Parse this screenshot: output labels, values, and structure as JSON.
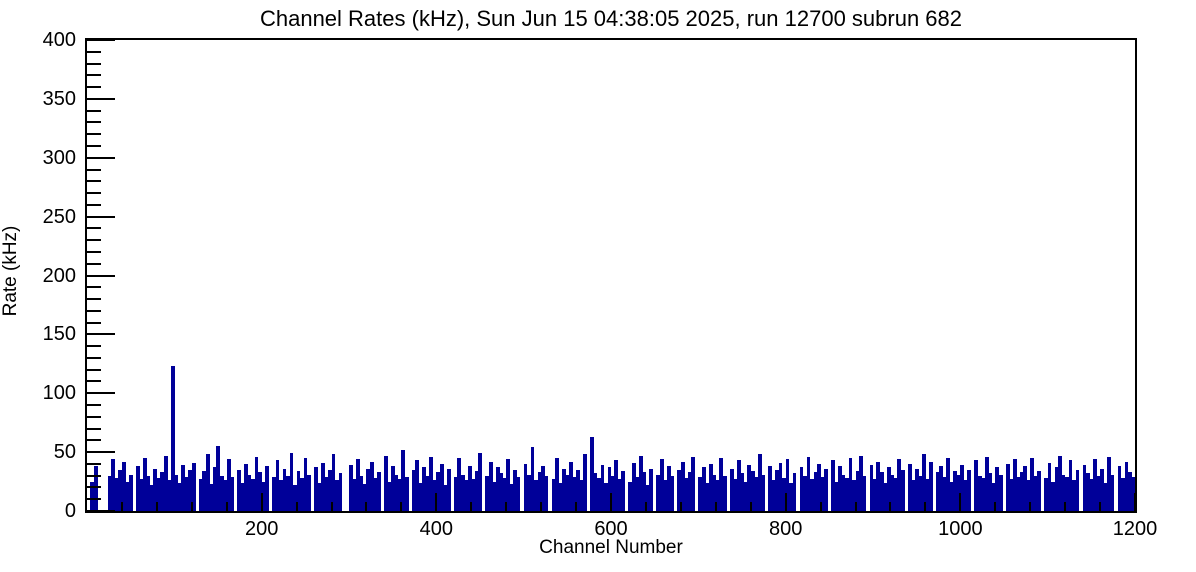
{
  "chart_data": {
    "type": "bar",
    "title": "Channel Rates (kHz), Sun Jun 15 04:38:05 2025, run 12700 subrun 682",
    "xlabel": "Channel Number",
    "ylabel": "Rate (kHz)",
    "xlim": [
      0,
      1200
    ],
    "ylim": [
      0,
      400
    ],
    "x_major_ticks": [
      200,
      400,
      600,
      800,
      1000,
      1200
    ],
    "x_minor_step": 40,
    "y_major_ticks": [
      0,
      50,
      100,
      150,
      200,
      250,
      300,
      350,
      400
    ],
    "y_minor_step": 10,
    "grid": false,
    "legend": false,
    "bar_color": "#000099",
    "bin_width_channels": 4,
    "notable_peaks": [
      {
        "channel": 98,
        "rate": 123
      },
      {
        "channel": 578,
        "rate": 63
      }
    ],
    "values": [
      0,
      25,
      38,
      0,
      0,
      0,
      30,
      44,
      28,
      35,
      42,
      25,
      31,
      0,
      38,
      27,
      45,
      30,
      22,
      36,
      28,
      33,
      47,
      26,
      123,
      31,
      24,
      39,
      29,
      35,
      41,
      0,
      27,
      34,
      48,
      23,
      37,
      55,
      30,
      26,
      44,
      29,
      0,
      35,
      24,
      40,
      31,
      27,
      46,
      33,
      25,
      38,
      0,
      29,
      43,
      26,
      36,
      30,
      49,
      22,
      34,
      28,
      45,
      31,
      0,
      37,
      24,
      41,
      29,
      35,
      48,
      26,
      32,
      0,
      0,
      39,
      27,
      44,
      30,
      23,
      36,
      42,
      28,
      33,
      0,
      47,
      25,
      38,
      31,
      27,
      52,
      29,
      0,
      35,
      43,
      24,
      37,
      30,
      46,
      26,
      33,
      40,
      22,
      36,
      0,
      29,
      45,
      31,
      26,
      38,
      27,
      34,
      49,
      0,
      30,
      42,
      25,
      37,
      32,
      28,
      44,
      23,
      35,
      29,
      0,
      40,
      31,
      54,
      26,
      33,
      38,
      30,
      0,
      27,
      45,
      24,
      36,
      31,
      42,
      29,
      35,
      26,
      48,
      0,
      63,
      32,
      28,
      39,
      24,
      37,
      30,
      43,
      27,
      34,
      0,
      25,
      41,
      29,
      47,
      33,
      22,
      36,
      0,
      31,
      44,
      26,
      38,
      30,
      0,
      35,
      42,
      28,
      33,
      46,
      0,
      29,
      37,
      24,
      40,
      31,
      26,
      45,
      30,
      0,
      36,
      27,
      43,
      32,
      25,
      39,
      34,
      29,
      48,
      31,
      0,
      38,
      26,
      35,
      41,
      28,
      44,
      24,
      32,
      0,
      37,
      30,
      46,
      27,
      33,
      40,
      29,
      36,
      0,
      43,
      25,
      38,
      31,
      28,
      45,
      26,
      34,
      47,
      30,
      0,
      39,
      27,
      42,
      33,
      24,
      37,
      31,
      28,
      44,
      35,
      0,
      40,
      26,
      36,
      30,
      48,
      27,
      42,
      0,
      33,
      38,
      29,
      45,
      25,
      34,
      31,
      39,
      26,
      35,
      0,
      43,
      30,
      28,
      46,
      32,
      24,
      37,
      31,
      0,
      40,
      27,
      44,
      29,
      33,
      38,
      26,
      45,
      30,
      34,
      0,
      28,
      41,
      25,
      37,
      47,
      31,
      29,
      43,
      26,
      35,
      0,
      39,
      32,
      27,
      44,
      30,
      36,
      24,
      46,
      31,
      0,
      38,
      28,
      42,
      33,
      29
    ]
  }
}
